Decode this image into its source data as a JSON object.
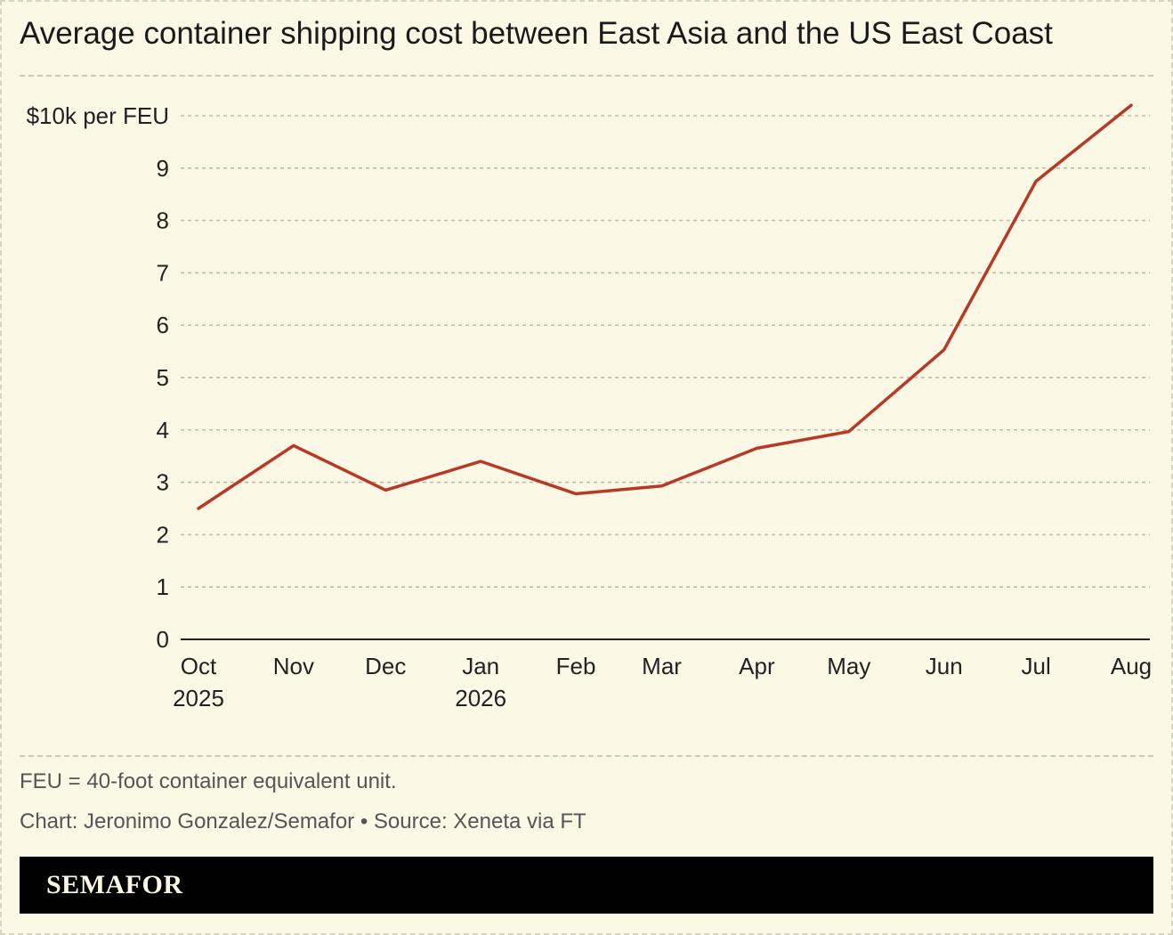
{
  "title": "Average container shipping cost between East Asia and the US East Coast",
  "chart_data": {
    "type": "line",
    "title": "Average container shipping cost between East Asia and the US East Coast",
    "ylabel": "$10k per FEU",
    "xlabel": "",
    "ylim": [
      0,
      10
    ],
    "y_ticks": [
      {
        "value": 0,
        "label": "0"
      },
      {
        "value": 1,
        "label": "1"
      },
      {
        "value": 2,
        "label": "2"
      },
      {
        "value": 3,
        "label": "3"
      },
      {
        "value": 4,
        "label": "4"
      },
      {
        "value": 5,
        "label": "5"
      },
      {
        "value": 6,
        "label": "6"
      },
      {
        "value": 7,
        "label": "7"
      },
      {
        "value": 8,
        "label": "8"
      },
      {
        "value": 9,
        "label": "9"
      },
      {
        "value": 10,
        "label": "$10k per FEU"
      }
    ],
    "x_ticks": [
      {
        "label": "Oct",
        "sub": "2025"
      },
      {
        "label": "Nov",
        "sub": ""
      },
      {
        "label": "Dec",
        "sub": ""
      },
      {
        "label": "Jan",
        "sub": "2026"
      },
      {
        "label": "Feb",
        "sub": ""
      },
      {
        "label": "Mar",
        "sub": ""
      },
      {
        "label": "Apr",
        "sub": ""
      },
      {
        "label": "May",
        "sub": ""
      },
      {
        "label": "Jun",
        "sub": ""
      },
      {
        "label": "Jul",
        "sub": ""
      },
      {
        "label": "Aug",
        "sub": ""
      }
    ],
    "series": [
      {
        "color": "#b83a26",
        "points": [
          {
            "x": "2025-10-01",
            "y": 2.5
          },
          {
            "x": "2025-11-01",
            "y": 3.7
          },
          {
            "x": "2025-12-01",
            "y": 2.85
          },
          {
            "x": "2026-01-01",
            "y": 3.4
          },
          {
            "x": "2026-02-01",
            "y": 2.78
          },
          {
            "x": "2026-03-01",
            "y": 2.93
          },
          {
            "x": "2026-04-01",
            "y": 3.65
          },
          {
            "x": "2026-05-01",
            "y": 3.97
          },
          {
            "x": "2026-06-01",
            "y": 5.53
          },
          {
            "x": "2026-07-01",
            "y": 8.75
          },
          {
            "x": "2026-08-01",
            "y": 10.2
          }
        ]
      }
    ],
    "grid": "horizontal dashed"
  },
  "notes": {
    "definition": "FEU = 40-foot container equivalent unit.",
    "credit": "Chart: Jeronimo Gonzalez/Semafor • Source: Xeneta via FT"
  },
  "brand": {
    "logo": "SEMAFOR"
  }
}
